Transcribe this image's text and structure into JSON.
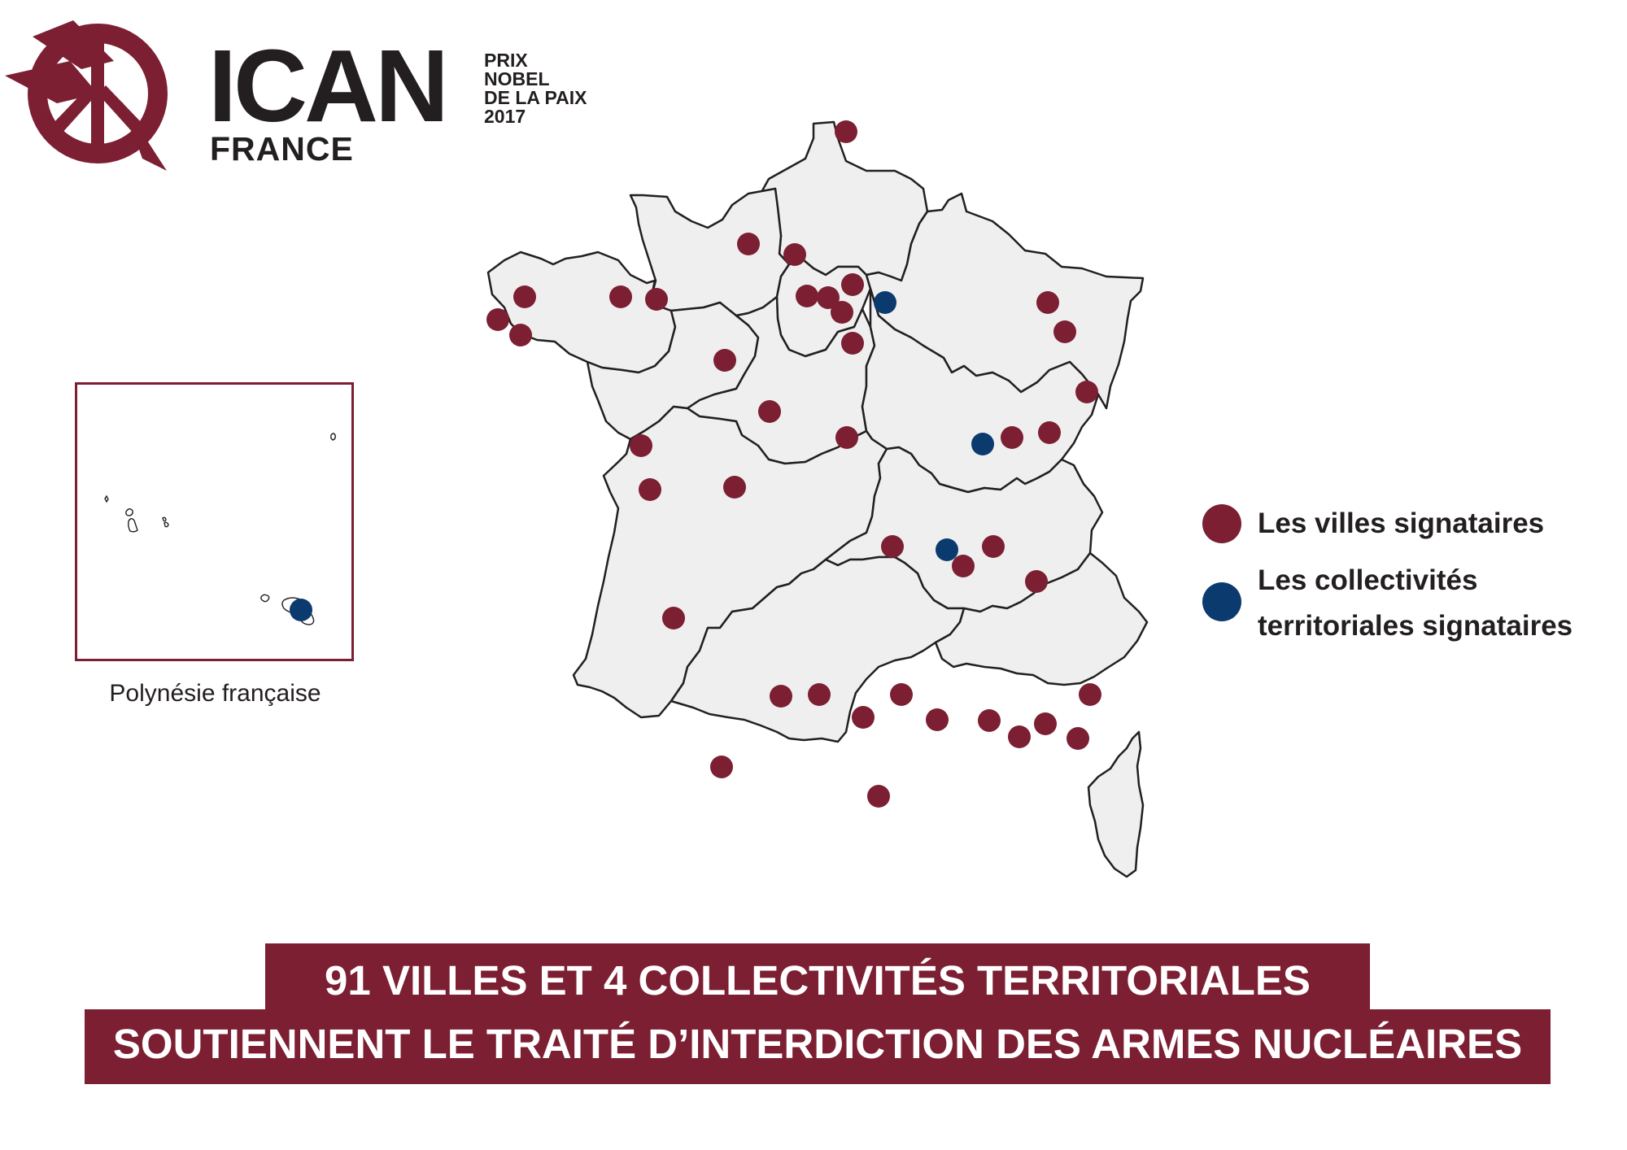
{
  "logo": {
    "word": "ICAN",
    "sub": "FRANCE",
    "prize_lines": [
      "PRIX",
      "NOBEL",
      "DE LA PAIX",
      "2017"
    ],
    "icon": "ican-bird-peace-icon"
  },
  "inset": {
    "label": "Polynésie française"
  },
  "legend": {
    "cities": "Les villes signataires",
    "collectivities_line1": "Les collectivités",
    "collectivities_line2": "territoriales signataires"
  },
  "banner": {
    "line1": "91 VILLES ET 4 COLLECTIVITÉS TERRITORIALES",
    "line2": "SOUTIENNENT LE TRAITÉ D’INTERDICTION DES ARMES NUCLÉAIRES"
  },
  "colors": {
    "city": "#7c1f32",
    "collectivity": "#0b3a6e",
    "map_fill": "#efefef",
    "border": "#231f20"
  }
}
